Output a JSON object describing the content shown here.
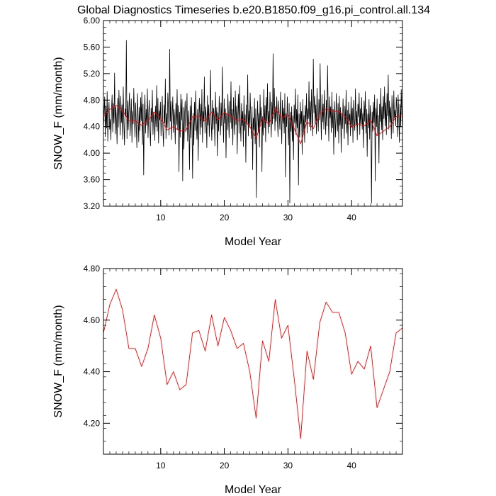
{
  "title": "Global Diagnostics Timeseries b.e20.B1850.f09_g16.pi_control.all.134",
  "chart_data": [
    {
      "type": "line",
      "xlabel": "Model Year",
      "ylabel": "SNOW_F (mm/month)",
      "xlim": [
        1,
        48
      ],
      "ylim": [
        3.2,
        6.0
      ],
      "xticks": [
        10,
        20,
        30,
        40
      ],
      "xtick_labels": [
        "10",
        "20",
        "30",
        "40"
      ],
      "yticks": [
        3.2,
        3.6,
        4.0,
        4.4,
        4.8,
        5.2,
        5.6,
        6.0
      ],
      "ytick_labels": [
        "3.20",
        "3.60",
        "4.00",
        "4.40",
        "4.80",
        "5.20",
        "5.60",
        "6.00"
      ],
      "series": [
        {
          "color": "#000000",
          "resolution": "monthly",
          "x_start": 1,
          "x_end": 48,
          "values": [
            4.31,
            4.62,
            4.85,
            4.25,
            4.71,
            4.38,
            4.93,
            4.18,
            4.6,
            4.77,
            4.36,
            4.51,
            4.2,
            4.66,
            4.88,
            4.32,
            4.75,
            4.45,
            5.21,
            4.29,
            4.7,
            4.5,
            4.14,
            4.83,
            4.39,
            4.95,
            4.61,
            4.27,
            4.86,
            4.46,
            4.73,
            4.21,
            5.0,
            4.48,
            4.12,
            4.67,
            4.56,
            5.7,
            4.22,
            4.79,
            4.35,
            4.65,
            4.91,
            4.26,
            4.55,
            4.82,
            4.16,
            4.63,
            4.44,
            4.98,
            4.53,
            4.24,
            4.76,
            4.41,
            4.08,
            4.9,
            4.58,
            4.17,
            4.69,
            4.34,
            4.84,
            4.49,
            4.92,
            4.13,
            4.74,
            3.67,
            4.57,
            4.88,
            4.3,
            4.66,
            4.42,
            4.97,
            4.23,
            4.59,
            4.8,
            4.37,
            4.11,
            4.68,
            4.47,
            4.95,
            4.28,
            4.62,
            4.54,
            4.19,
            4.71,
            4.4,
            5.02,
            4.33,
            4.83,
            4.15,
            4.64,
            4.5,
            4.77,
            4.26,
            4.56,
            4.86,
            4.36,
            4.1,
            4.73,
            4.45,
            5.12,
            4.22,
            4.6,
            4.38,
            4.91,
            4.68,
            4.27,
            5.57,
            4.48,
            4.78,
            4.2,
            4.57,
            4.85,
            4.31,
            4.66,
            4.52,
            4.14,
            4.75,
            4.43,
            4.96,
            4.35,
            4.72,
            3.72,
            4.62,
            4.24,
            4.89,
            4.5,
            4.81,
            3.58,
            4.69,
            4.06,
            4.58,
            4.79,
            4.32,
            4.55,
            4.9,
            4.18,
            4.64,
            4.4,
            3.75,
            4.71,
            4.23,
            4.84,
            4.46,
            3.62,
            4.6,
            4.12,
            4.77,
            4.34,
            4.94,
            4.51,
            4.21,
            4.66,
            3.89,
            4.58,
            4.83,
            4.28,
            4.74,
            4.39,
            4.96,
            4.16,
            4.63,
            4.48,
            5.15,
            4.3,
            4.7,
            4.55,
            4.08,
            4.87,
            4.42,
            4.73,
            4.25,
            4.62,
            5.25,
            4.47,
            4.19,
            4.8,
            4.36,
            4.68,
            4.56,
            4.11,
            4.92,
            4.44,
            4.69,
            3.96,
            4.61,
            4.33,
            4.86,
            4.5,
            4.27,
            4.76,
            4.41,
            5.3,
            4.58,
            4.16,
            4.82,
            4.45,
            4.67,
            3.93,
            4.6,
            4.35,
            4.89,
            4.53,
            4.23,
            4.78,
            4.46,
            5.08,
            4.37,
            4.66,
            4.12,
            4.84,
            4.52,
            4.28,
            4.94,
            4.43,
            4.71,
            3.99,
            4.56,
            4.89,
            4.3,
            5.02,
            4.49,
            4.18,
            4.75,
            4.41,
            4.63,
            4.1,
            4.87,
            4.34,
            4.58,
            3.86,
            4.73,
            4.45,
            5.18,
            4.26,
            4.64,
            4.39,
            4.91,
            4.51,
            4.22,
            4.7,
            3.75,
            4.53,
            4.35,
            4.83,
            4.14,
            4.67,
            3.33,
            4.46,
            4.79,
            4.31,
            4.6,
            4.09,
            4.88,
            4.42,
            4.69,
            3.72,
            4.55,
            4.27,
            4.96,
            4.38,
            4.72,
            4.17,
            4.84,
            4.48,
            5.05,
            4.3,
            4.63,
            4.4,
            4.92,
            4.6,
            4.24,
            4.77,
            4.44,
            5.5,
            4.52,
            4.98,
            4.34,
            4.7,
            4.48,
            4.85,
            4.5,
            4.25,
            4.79,
            4.58,
            4.36,
            4.92,
            4.53,
            4.14,
            4.8,
            4.45,
            4.68,
            4.3,
            4.9,
            3.64,
            4.6,
            4.4,
            4.85,
            4.49,
            4.12,
            4.75,
            3.25,
            4.62,
            4.33,
            4.7,
            4.18,
            4.56,
            3.9,
            4.73,
            4.46,
            4.97,
            4.28,
            4.66,
            4.38,
            4.88,
            3.52,
            4.59,
            4.24,
            4.77,
            4.44,
            4.63,
            3.98,
            4.81,
            4.32,
            4.57,
            4.16,
            4.72,
            4.47,
            4.9,
            4.3,
            4.67,
            4.52,
            5.08,
            4.4,
            4.78,
            4.34,
            4.96,
            4.55,
            4.26,
            5.42,
            4.61,
            4.86,
            4.44,
            4.73,
            4.29,
            4.98,
            4.58,
            4.33,
            4.81,
            4.5,
            5.35,
            4.62,
            4.2,
            4.88,
            4.47,
            4.74,
            4.36,
            4.95,
            4.57,
            4.28,
            4.8,
            4.41,
            5.32,
            4.64,
            4.18,
            4.85,
            4.53,
            4.7,
            4.31,
            4.92,
            4.38,
            4.66,
            3.98,
            4.78,
            4.49,
            4.24,
            4.9,
            4.58,
            4.33,
            4.75,
            4.15,
            4.86,
            4.42,
            4.69,
            4.01,
            4.6,
            4.37,
            4.82,
            4.5,
            4.22,
            4.71,
            4.44,
            4.95,
            4.3,
            4.65,
            4.12,
            4.77,
            4.48,
            4.59,
            4.26,
            4.85,
            4.39,
            4.68,
            4.16,
            4.8,
            4.5,
            4.34,
            4.97,
            4.42,
            4.63,
            4.2,
            4.74,
            4.55,
            4.91,
            4.28,
            4.67,
            4.44,
            4.84,
            4.36,
            4.6,
            4.08,
            4.79,
            4.48,
            4.93,
            4.3,
            4.66,
            3.95,
            4.59,
            4.38,
            4.81,
            4.21,
            4.72,
            4.5,
            3.25,
            4.62,
            4.33,
            4.77,
            4.46,
            4.88,
            3.58,
            4.68,
            4.4,
            4.82,
            4.27,
            4.57,
            3.85,
            4.74,
            4.48,
            4.98,
            4.35,
            4.7,
            4.2,
            4.86,
            4.52,
            5.0,
            4.41,
            4.76,
            4.28,
            4.9,
            4.56,
            5.18,
            4.36,
            4.79,
            4.47,
            4.69,
            4.22,
            4.87,
            4.58,
            4.3,
            4.94,
            4.53,
            4.65,
            4.41,
            4.84,
            4.67,
            4.25,
            4.88,
            4.56,
            4.16,
            4.74,
            4.4,
            4.96,
            4.6,
            4.3
          ]
        },
        {
          "color": "#ff0000",
          "resolution": "annual",
          "x": [
            1,
            2,
            3,
            4,
            5,
            6,
            7,
            8,
            9,
            10,
            11,
            12,
            13,
            14,
            15,
            16,
            17,
            18,
            19,
            20,
            21,
            22,
            23,
            24,
            25,
            26,
            27,
            28,
            29,
            30,
            31,
            32,
            33,
            34,
            35,
            36,
            37,
            38,
            39,
            40,
            41,
            42,
            43,
            44,
            45,
            46,
            47,
            48
          ],
          "values": [
            4.55,
            4.66,
            4.72,
            4.64,
            4.49,
            4.49,
            4.42,
            4.49,
            4.62,
            4.53,
            4.35,
            4.4,
            4.33,
            4.35,
            4.55,
            4.56,
            4.48,
            4.62,
            4.5,
            4.61,
            4.56,
            4.49,
            4.51,
            4.4,
            4.22,
            4.52,
            4.44,
            4.68,
            4.53,
            4.58,
            4.37,
            4.14,
            4.48,
            4.37,
            4.59,
            4.67,
            4.63,
            4.63,
            4.55,
            4.39,
            4.44,
            4.41,
            4.5,
            4.26,
            4.33,
            4.4,
            4.55,
            4.57
          ]
        }
      ]
    },
    {
      "type": "line",
      "xlabel": "Model Year",
      "ylabel": "SNOW_F (mm/month)",
      "xlim": [
        1,
        48
      ],
      "ylim": [
        4.08,
        4.8
      ],
      "xticks": [
        10,
        20,
        30,
        40
      ],
      "xtick_labels": [
        "10",
        "20",
        "30",
        "40"
      ],
      "yticks": [
        4.2,
        4.4,
        4.6,
        4.8
      ],
      "ytick_labels": [
        "4.20",
        "4.40",
        "4.60",
        "4.80"
      ],
      "series": [
        {
          "color": "#ff0000",
          "x": [
            1,
            2,
            3,
            4,
            5,
            6,
            7,
            8,
            9,
            10,
            11,
            12,
            13,
            14,
            15,
            16,
            17,
            18,
            19,
            20,
            21,
            22,
            23,
            24,
            25,
            26,
            27,
            28,
            29,
            30,
            31,
            32,
            33,
            34,
            35,
            36,
            37,
            38,
            39,
            40,
            41,
            42,
            43,
            44,
            45,
            46,
            47,
            48
          ],
          "values": [
            4.55,
            4.66,
            4.72,
            4.64,
            4.49,
            4.49,
            4.42,
            4.49,
            4.62,
            4.53,
            4.35,
            4.4,
            4.33,
            4.35,
            4.55,
            4.56,
            4.48,
            4.62,
            4.5,
            4.61,
            4.56,
            4.49,
            4.51,
            4.4,
            4.22,
            4.52,
            4.44,
            4.68,
            4.53,
            4.58,
            4.37,
            4.14,
            4.48,
            4.37,
            4.59,
            4.67,
            4.63,
            4.63,
            4.55,
            4.39,
            4.44,
            4.41,
            4.5,
            4.26,
            4.33,
            4.4,
            4.55,
            4.57
          ]
        }
      ]
    }
  ]
}
